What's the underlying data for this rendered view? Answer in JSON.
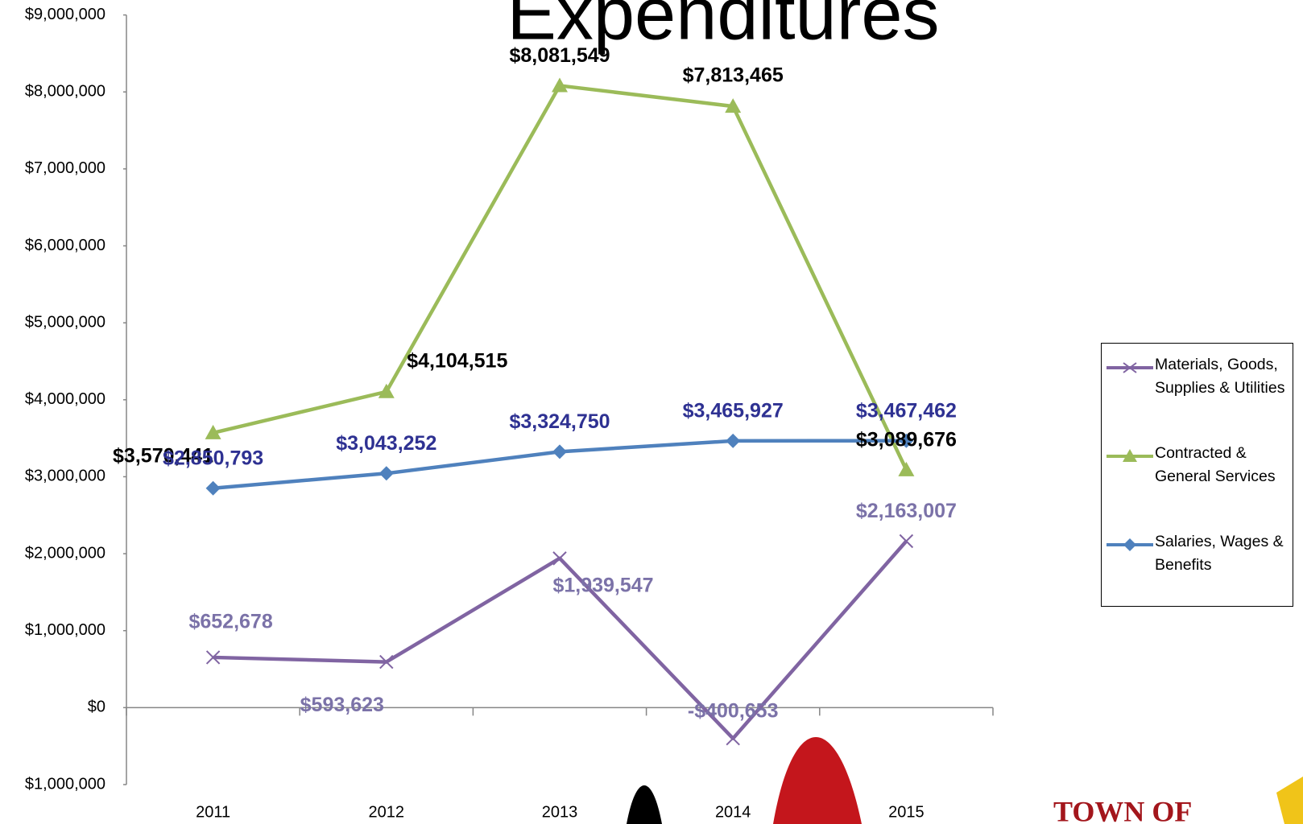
{
  "chart_data": {
    "type": "line",
    "title": "Expenditures",
    "categories": [
      "2011",
      "2012",
      "2013",
      "2014",
      "2015"
    ],
    "series": [
      {
        "name": "Materials, Goods, Supplies & Utilities",
        "color": "#8064a2",
        "marker": "x",
        "label_color": "#7b72a8",
        "values": [
          652678,
          593623,
          1939547,
          -400653,
          2163007
        ],
        "value_labels": [
          "$652,678",
          "$593,623",
          "$1,939,547",
          "-$400,653",
          "$2,163,007"
        ]
      },
      {
        "name": "Contracted & General Services",
        "color": "#9bbb59",
        "marker": "triangle",
        "label_color": "#000000",
        "values": [
          3570441,
          4104515,
          8081549,
          7813465,
          3089676
        ],
        "value_labels": [
          "$3,570,441",
          "$4,104,515",
          "$8,081,549",
          "$7,813,465",
          "$3,089,676"
        ]
      },
      {
        "name": "Salaries, Wages & Benefits",
        "color": "#4f81bd",
        "marker": "diamond",
        "label_color": "#2e3192",
        "values": [
          2850793,
          3043252,
          3324750,
          3465927,
          3467462
        ],
        "value_labels": [
          "$2,850,793",
          "$3,043,252",
          "$3,324,750",
          "$3,465,927",
          "$3,467,462"
        ]
      }
    ],
    "ylim": [
      -1000000,
      9000000
    ],
    "yticks": [
      {
        "value": 9000000,
        "label": "$9,000,000"
      },
      {
        "value": 8000000,
        "label": "$8,000,000"
      },
      {
        "value": 7000000,
        "label": "$7,000,000"
      },
      {
        "value": 6000000,
        "label": "$6,000,000"
      },
      {
        "value": 5000000,
        "label": "$5,000,000"
      },
      {
        "value": 4000000,
        "label": "$4,000,000"
      },
      {
        "value": 3000000,
        "label": "$3,000,000"
      },
      {
        "value": 2000000,
        "label": "$2,000,000"
      },
      {
        "value": 1000000,
        "label": "$1,000,000"
      },
      {
        "value": 0,
        "label": "$0"
      },
      {
        "value": -1000000,
        "label": "$1,000,000"
      }
    ],
    "negative_tick_color": "#ff0000",
    "grid": false,
    "legend": "right"
  },
  "logo": {
    "text": "TOWN OF"
  }
}
